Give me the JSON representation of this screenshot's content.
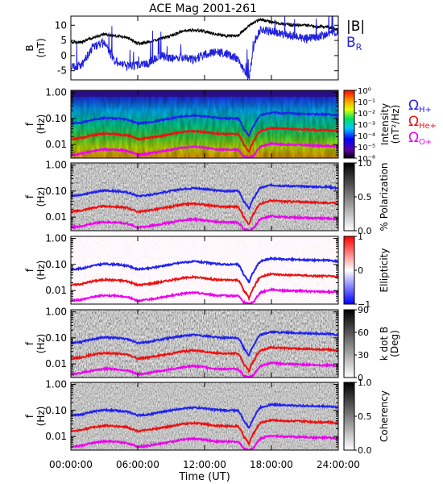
{
  "chart_data": {
    "type": "line",
    "title": "ACE Mag 2001-261",
    "xlabel": "Time (UT)",
    "x_ticks": [
      "00:00:00",
      "06:00:00",
      "12:00:00",
      "18:00:00",
      "24:00:00"
    ],
    "x_range_hours": [
      0,
      24
    ],
    "line_panel": {
      "ylabel_top": "B",
      "ylabel_unit": "(nT)",
      "ylim": [
        -8,
        13
      ],
      "y_ticks": [
        "10",
        "5",
        "0",
        "-5"
      ],
      "legend": [
        "|B|",
        "B"
      ],
      "legend_sub": "R",
      "colors": [
        "#000000",
        "#2222dd"
      ],
      "series": [
        {
          "name": "|B|",
          "x": [
            0,
            1,
            2,
            3,
            4,
            5,
            6,
            7,
            8,
            9,
            10,
            11,
            12,
            13,
            14,
            15,
            16,
            17,
            18,
            19,
            20,
            21,
            22,
            23,
            24
          ],
          "values": [
            4.2,
            4.5,
            6.0,
            7.0,
            6.5,
            6.0,
            4.0,
            4.5,
            5.5,
            6.5,
            8.0,
            8.5,
            8.0,
            7.0,
            6.5,
            6.5,
            10.0,
            12.0,
            11.0,
            10.5,
            10.0,
            10.0,
            9.5,
            9.5,
            8.5
          ]
        },
        {
          "name": "B",
          "x": [
            0,
            1,
            2,
            3,
            4,
            5,
            6,
            7,
            8,
            9,
            10,
            11,
            12,
            13,
            14,
            15,
            15.5,
            16,
            16.5,
            17,
            18,
            19,
            20,
            21,
            22,
            23,
            24
          ],
          "values": [
            -4.0,
            -3.0,
            3.0,
            4.0,
            -2.0,
            -3.5,
            -3.0,
            -2.5,
            0.0,
            -1.0,
            -0.5,
            -1.5,
            0.5,
            1.0,
            0.5,
            -1.0,
            -5.0,
            -7.5,
            5.0,
            8.5,
            8.0,
            7.0,
            6.5,
            5.5,
            6.0,
            7.0,
            8.0
          ]
        }
      ]
    },
    "spectrogram_panels": [
      {
        "id": "intensity",
        "ylabel_top": "f",
        "ylabel_unit": "(Hz)",
        "colorbar_label": "Intensity",
        "colorbar_unit": "(nT²/Hz)",
        "colorbar_ticks": [
          "10⁰",
          "10⁻¹",
          "10⁻²",
          "10⁻³",
          "10⁻⁴",
          "10⁻⁵",
          "10⁻⁶"
        ],
        "colormap": "rainbow"
      },
      {
        "id": "polarization",
        "ylabel_top": "f",
        "ylabel_unit": "(Hz)",
        "colorbar_label": "% Polarization",
        "colorbar_unit": "",
        "colorbar_ticks": [
          "1.0",
          "0.5",
          "0.0"
        ],
        "colormap": "gray"
      },
      {
        "id": "ellipticity",
        "ylabel_top": "f",
        "ylabel_unit": "(Hz)",
        "colorbar_label": "Ellipticity",
        "colorbar_unit": "",
        "colorbar_ticks": [
          "1",
          "0",
          "−1"
        ],
        "colormap": "bwr"
      },
      {
        "id": "kdotb",
        "ylabel_top": "f",
        "ylabel_unit": "(Hz)",
        "colorbar_label": "k dot B",
        "colorbar_unit": "(Deg)",
        "colorbar_ticks": [
          "90",
          "60",
          "30",
          "0"
        ],
        "colormap": "gray"
      },
      {
        "id": "coherency",
        "ylabel_top": "f",
        "ylabel_unit": "(Hz)",
        "colorbar_label": "Coherency",
        "colorbar_unit": "",
        "colorbar_ticks": [
          "1.0",
          "0.5",
          "0.0"
        ],
        "colormap": "gray"
      }
    ],
    "freq_axis": {
      "scale": "log",
      "ylim": [
        0.003,
        1.2
      ],
      "y_ticks": [
        1.0,
        0.1,
        0.01
      ],
      "y_tick_labels": [
        "1.00",
        "0.10",
        "0.01"
      ]
    },
    "gyro_lines": {
      "legend": [
        {
          "label": "Ω",
          "sub": "H+",
          "color": "#2222ee"
        },
        {
          "label": "Ω",
          "sub": "He+",
          "color": "#ee1111"
        },
        {
          "label": "Ω",
          "sub": "O+",
          "color": "#ee00ee"
        }
      ],
      "x": [
        0,
        1,
        2,
        3,
        4,
        5,
        6,
        7,
        8,
        9,
        10,
        11,
        12,
        13,
        14,
        15,
        15.5,
        16,
        16.5,
        17,
        18,
        19,
        20,
        21,
        22,
        23,
        24
      ],
      "h_plus_hz": [
        0.065,
        0.07,
        0.09,
        0.105,
        0.1,
        0.09,
        0.065,
        0.07,
        0.085,
        0.1,
        0.12,
        0.13,
        0.12,
        0.105,
        0.1,
        0.1,
        0.04,
        0.02,
        0.06,
        0.13,
        0.17,
        0.16,
        0.155,
        0.15,
        0.145,
        0.145,
        0.13
      ],
      "he_plus_hz": [
        0.016,
        0.018,
        0.023,
        0.026,
        0.025,
        0.023,
        0.016,
        0.018,
        0.021,
        0.025,
        0.03,
        0.033,
        0.03,
        0.026,
        0.025,
        0.025,
        0.01,
        0.005,
        0.015,
        0.033,
        0.043,
        0.04,
        0.039,
        0.038,
        0.036,
        0.036,
        0.033
      ],
      "o_plus_hz": [
        0.004,
        0.0045,
        0.0057,
        0.0065,
        0.0063,
        0.0057,
        0.004,
        0.0045,
        0.0053,
        0.0063,
        0.0075,
        0.0083,
        0.0075,
        0.0065,
        0.0063,
        0.0063,
        0.0035,
        0.003,
        0.004,
        0.0083,
        0.011,
        0.01,
        0.0097,
        0.0095,
        0.009,
        0.009,
        0.0083
      ]
    }
  }
}
